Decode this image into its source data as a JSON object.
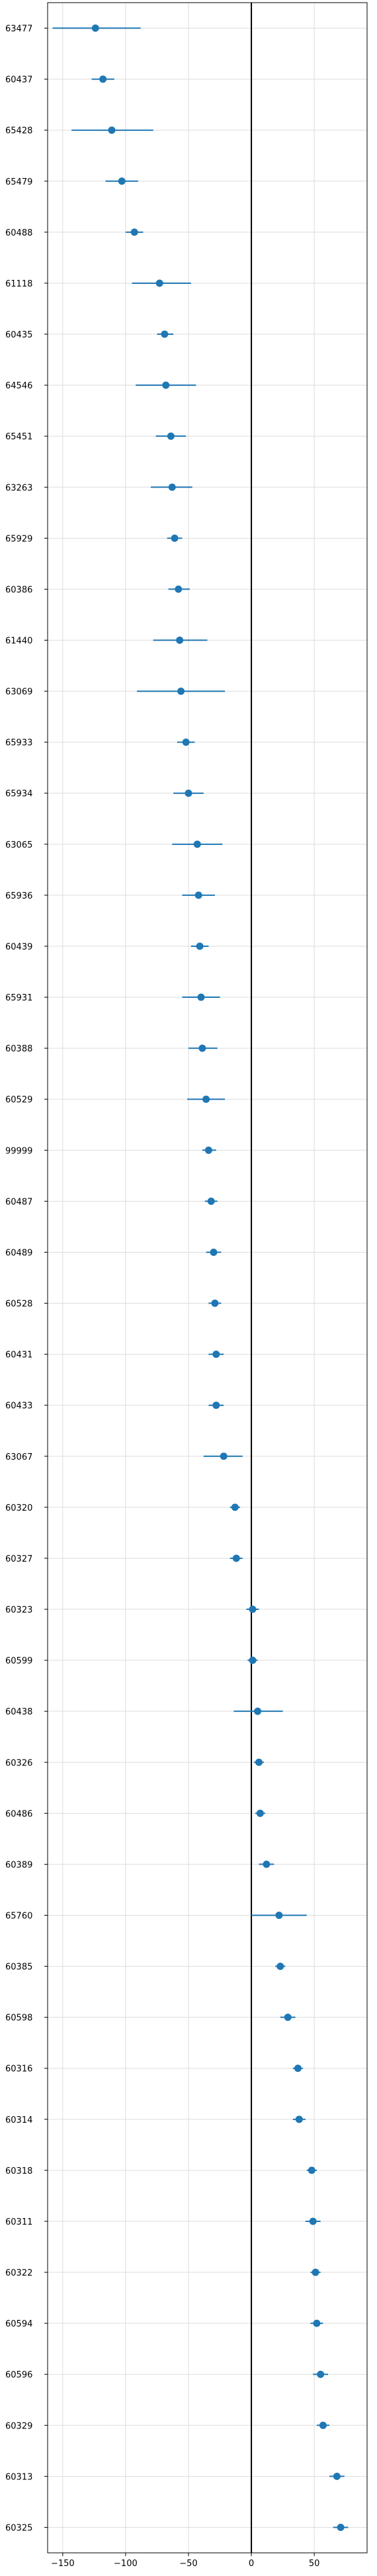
{
  "chart_data": {
    "type": "scatter",
    "title": "",
    "xlabel": "",
    "ylabel": "",
    "xlim": [
      -162,
      92
    ],
    "xticks": [
      -150,
      -100,
      -50,
      0,
      50
    ],
    "xtick_labels": [
      "−150",
      "−100",
      "−50",
      "0",
      "50"
    ],
    "grid": true,
    "reference_line_x": 0,
    "color": "#1f77b4",
    "series": [
      {
        "points": [
          {
            "label": "63477",
            "x": -124,
            "low": -158,
            "high": -88
          },
          {
            "label": "60437",
            "x": -118,
            "low": -127,
            "high": -109
          },
          {
            "label": "65428",
            "x": -111,
            "low": -143,
            "high": -78
          },
          {
            "label": "65479",
            "x": -103,
            "low": -116,
            "high": -90
          },
          {
            "label": "60488",
            "x": -93,
            "low": -100,
            "high": -86
          },
          {
            "label": "61118",
            "x": -73,
            "low": -95,
            "high": -48
          },
          {
            "label": "60435",
            "x": -69,
            "low": -75,
            "high": -62
          },
          {
            "label": "64546",
            "x": -68,
            "low": -92,
            "high": -44
          },
          {
            "label": "65451",
            "x": -64,
            "low": -76,
            "high": -52
          },
          {
            "label": "63263",
            "x": -63,
            "low": -80,
            "high": -47
          },
          {
            "label": "65929",
            "x": -61,
            "low": -67,
            "high": -55
          },
          {
            "label": "60386",
            "x": -58,
            "low": -66,
            "high": -49
          },
          {
            "label": "61440",
            "x": -57,
            "low": -78,
            "high": -35
          },
          {
            "label": "63069",
            "x": -56,
            "low": -91,
            "high": -21
          },
          {
            "label": "65933",
            "x": -52,
            "low": -59,
            "high": -45
          },
          {
            "label": "65934",
            "x": -50,
            "low": -62,
            "high": -38
          },
          {
            "label": "63065",
            "x": -43,
            "low": -63,
            "high": -23
          },
          {
            "label": "65936",
            "x": -42,
            "low": -55,
            "high": -29
          },
          {
            "label": "60439",
            "x": -41,
            "low": -48,
            "high": -34
          },
          {
            "label": "65931",
            "x": -40,
            "low": -55,
            "high": -25
          },
          {
            "label": "60388",
            "x": -39,
            "low": -50,
            "high": -27
          },
          {
            "label": "60529",
            "x": -36,
            "low": -51,
            "high": -21
          },
          {
            "label": "99999",
            "x": -34,
            "low": -39,
            "high": -28
          },
          {
            "label": "60487",
            "x": -32,
            "low": -37,
            "high": -27
          },
          {
            "label": "60489",
            "x": -30,
            "low": -36,
            "high": -24
          },
          {
            "label": "60528",
            "x": -29,
            "low": -34,
            "high": -24
          },
          {
            "label": "60431",
            "x": -28,
            "low": -34,
            "high": -22
          },
          {
            "label": "60433",
            "x": -28,
            "low": -34,
            "high": -22
          },
          {
            "label": "63067",
            "x": -22,
            "low": -38,
            "high": -7
          },
          {
            "label": "60320",
            "x": -13,
            "low": -17,
            "high": -9
          },
          {
            "label": "60327",
            "x": -12,
            "low": -17,
            "high": -7
          },
          {
            "label": "60323",
            "x": 1,
            "low": -4,
            "high": 6
          },
          {
            "label": "60599",
            "x": 1,
            "low": -3,
            "high": 5
          },
          {
            "label": "60438",
            "x": 5,
            "low": -14,
            "high": 25
          },
          {
            "label": "60326",
            "x": 6,
            "low": 2,
            "high": 10
          },
          {
            "label": "60486",
            "x": 7,
            "low": 3,
            "high": 11
          },
          {
            "label": "60389",
            "x": 12,
            "low": 6,
            "high": 18
          },
          {
            "label": "65760",
            "x": 22,
            "low": 0,
            "high": 44
          },
          {
            "label": "60385",
            "x": 23,
            "low": 19,
            "high": 27
          },
          {
            "label": "60598",
            "x": 29,
            "low": 23,
            "high": 35
          },
          {
            "label": "60316",
            "x": 37,
            "low": 33,
            "high": 41
          },
          {
            "label": "60314",
            "x": 38,
            "low": 33,
            "high": 43
          },
          {
            "label": "60318",
            "x": 48,
            "low": 44,
            "high": 52
          },
          {
            "label": "60311",
            "x": 49,
            "low": 43,
            "high": 55
          },
          {
            "label": "60322",
            "x": 51,
            "low": 47,
            "high": 55
          },
          {
            "label": "60594",
            "x": 52,
            "low": 47,
            "high": 57
          },
          {
            "label": "60596",
            "x": 55,
            "low": 49,
            "high": 61
          },
          {
            "label": "60329",
            "x": 57,
            "low": 52,
            "high": 62
          },
          {
            "label": "60313",
            "x": 68,
            "low": 62,
            "high": 74
          },
          {
            "label": "60325",
            "x": 71,
            "low": 65,
            "high": 77
          }
        ]
      }
    ]
  }
}
